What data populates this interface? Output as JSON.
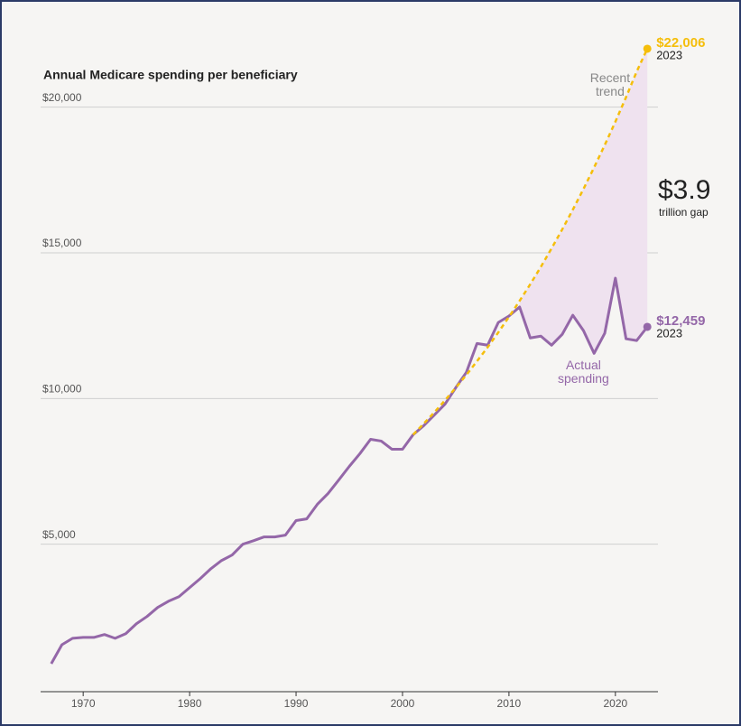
{
  "chart_data": {
    "type": "line",
    "title": "Annual Medicare spending per beneficiary",
    "xlim": [
      1966,
      2024
    ],
    "ylim": [
      0,
      22500
    ],
    "xticks": [
      1970,
      1980,
      1990,
      2000,
      2010,
      2020
    ],
    "yticks": [
      {
        "value": 5000,
        "label": "$5,000"
      },
      {
        "value": 10000,
        "label": "$10,000"
      },
      {
        "value": 15000,
        "label": "$15,000"
      },
      {
        "value": 20000,
        "label": "$20,000"
      }
    ],
    "grid": true,
    "series": [
      {
        "name": "Actual spending",
        "color": "#9467a8",
        "x": [
          1967,
          1968,
          1969,
          1970,
          1971,
          1972,
          1973,
          1974,
          1975,
          1976,
          1977,
          1978,
          1979,
          1980,
          1981,
          1982,
          1983,
          1984,
          1985,
          1986,
          1987,
          1988,
          1989,
          1990,
          1991,
          1992,
          1993,
          1994,
          1995,
          1996,
          1997,
          1998,
          1999,
          2000,
          2001,
          2002,
          2003,
          2004,
          2005,
          2006,
          2007,
          2008,
          2009,
          2010,
          2011,
          2012,
          2013,
          2014,
          2015,
          2016,
          2017,
          2018,
          2019,
          2020,
          2021,
          2022,
          2023
        ],
        "values": [
          900,
          1550,
          1770,
          1800,
          1800,
          1900,
          1770,
          1930,
          2270,
          2520,
          2830,
          3040,
          3200,
          3510,
          3820,
          4160,
          4440,
          4630,
          5000,
          5120,
          5250,
          5250,
          5310,
          5810,
          5870,
          6370,
          6740,
          7200,
          7670,
          8110,
          8600,
          8540,
          8260,
          8260,
          8760,
          9070,
          9440,
          9810,
          10370,
          10900,
          11890,
          11830,
          12610,
          12830,
          13140,
          12080,
          12140,
          11830,
          12200,
          12860,
          12330,
          11550,
          12240,
          14130,
          12050,
          11990,
          12459
        ],
        "value_labels": [
          null,
          null,
          null,
          null,
          null,
          null,
          null,
          null,
          null,
          null,
          null,
          null,
          null,
          null,
          null,
          null,
          null,
          null,
          null,
          null,
          null,
          null,
          null,
          null,
          null,
          null,
          null,
          null,
          null,
          null,
          null,
          null,
          null,
          null,
          null,
          null,
          null,
          null,
          null,
          null,
          null,
          null,
          null,
          null,
          null,
          null,
          null,
          null,
          null,
          null,
          null,
          null,
          null,
          null,
          null,
          null,
          "$12,459"
        ]
      },
      {
        "name": "Recent trend",
        "color": "#f5be0b",
        "dashed": true,
        "x": [
          2001,
          2002,
          2003,
          2004,
          2005,
          2006,
          2007,
          2008,
          2009,
          2010,
          2011,
          2012,
          2013,
          2014,
          2015,
          2016,
          2017,
          2018,
          2019,
          2020,
          2021,
          2022,
          2023
        ],
        "values": [
          8760,
          9140,
          9530,
          9940,
          10370,
          10810,
          11280,
          11760,
          12270,
          12800,
          13350,
          13920,
          14520,
          15150,
          15800,
          16480,
          17190,
          17930,
          18700,
          19500,
          20340,
          21220,
          22006
        ],
        "value_labels": [
          null,
          null,
          null,
          null,
          null,
          null,
          null,
          null,
          null,
          null,
          null,
          null,
          null,
          null,
          null,
          null,
          null,
          null,
          null,
          null,
          null,
          null,
          "$22,006"
        ]
      }
    ],
    "gap": {
      "value": "$3.9",
      "label": "trillion gap",
      "color": "#efe2ef"
    }
  }
}
